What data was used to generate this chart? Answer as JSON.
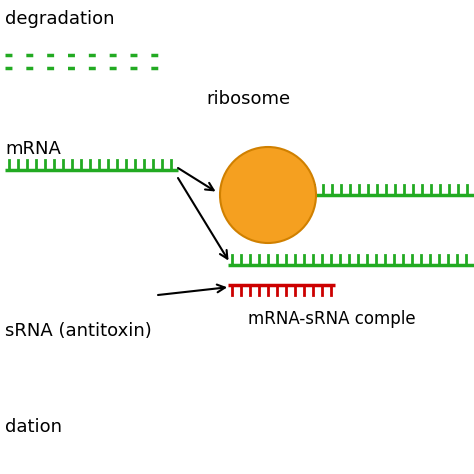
{
  "bg_color": "#ffffff",
  "green_color": "#22aa22",
  "red_color": "#cc0000",
  "orange_color": "#f5a020",
  "orange_edge": "#d08000",
  "arrow_color": "#000000",
  "text_color": "#000000",
  "label_degradation_top": "degradation",
  "label_mrna": "mRNA",
  "label_ribosome": "ribosome",
  "label_mrna_srna": "mRNA-sRNA comple",
  "label_srna_antitoxin": "sRNA (antitoxin)",
  "label_dation": "dation",
  "font_size_label": 13,
  "font_size_small": 12
}
